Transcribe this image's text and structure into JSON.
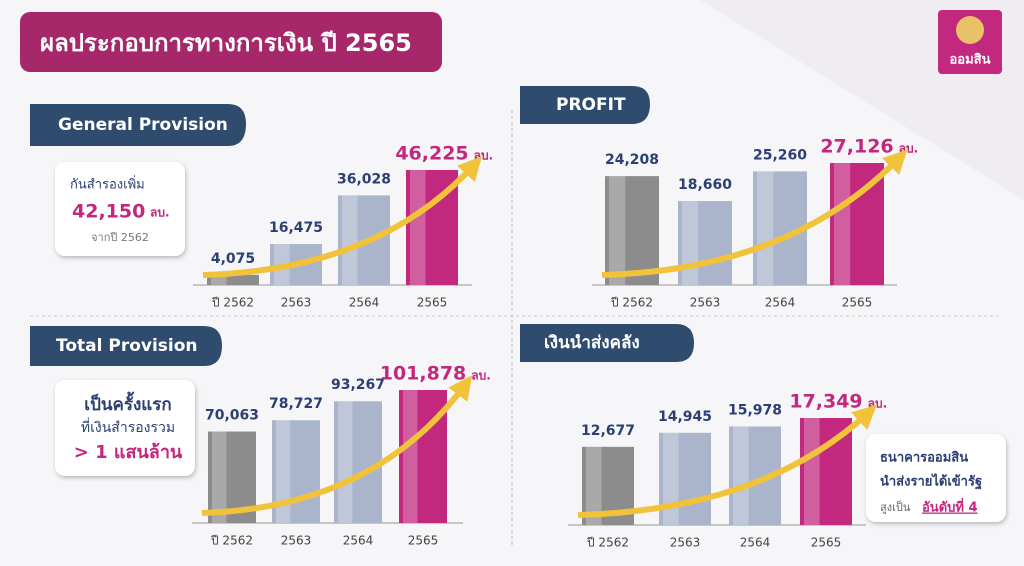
{
  "header": {
    "title": "ผลประกอบการทางการเงิน ปี 2565",
    "logo": "ออมสิน"
  },
  "chart_data": [
    {
      "type": "bar",
      "title": "General Provision",
      "categories": [
        "ปี 2562",
        "2563",
        "2564",
        "2565"
      ],
      "values": [
        4075,
        16475,
        36028,
        46225
      ],
      "value_labels": [
        "4,075",
        "16,475",
        "36,028",
        "46,225"
      ],
      "unit": "ลบ.",
      "colors": [
        "#8c8c8c",
        "#aab5cc",
        "#aab5cc",
        "#c2287e"
      ],
      "note": [
        "กันสำรองเพิ่ม",
        "42,150",
        "ลบ.",
        "จากปี 2562"
      ]
    },
    {
      "type": "bar",
      "title": "PROFIT",
      "categories": [
        "ปี 2562",
        "2563",
        "2564",
        "2565"
      ],
      "values": [
        24208,
        18660,
        25260,
        27126
      ],
      "value_labels": [
        "24,208",
        "18,660",
        "25,260",
        "27,126"
      ],
      "unit": "ลบ.",
      "colors": [
        "#8c8c8c",
        "#aab5cc",
        "#aab5cc",
        "#c2287e"
      ]
    },
    {
      "type": "bar",
      "title": "Total Provision",
      "categories": [
        "ปี 2562",
        "2563",
        "2564",
        "2565"
      ],
      "values": [
        70063,
        78727,
        93267,
        101878
      ],
      "value_labels": [
        "70,063",
        "78,727",
        "93,267",
        "101,878"
      ],
      "unit": "ลบ.",
      "colors": [
        "#8c8c8c",
        "#aab5cc",
        "#aab5cc",
        "#c2287e"
      ],
      "note": [
        "เป็นครั้งแรก",
        "ที่เงินสำรองรวม",
        "> 1 แสนล้าน"
      ]
    },
    {
      "type": "bar",
      "title": "เงินนำส่งคลัง",
      "categories": [
        "ปี 2562",
        "2563",
        "2564",
        "2565"
      ],
      "values": [
        12677,
        14945,
        15978,
        17349
      ],
      "value_labels": [
        "12,677",
        "14,945",
        "15,978",
        "17,349"
      ],
      "unit": "ลบ.",
      "colors": [
        "#8c8c8c",
        "#aab5cc",
        "#aab5cc",
        "#c2287e"
      ],
      "note": [
        "ธนาคารออมสิน",
        "นำส่งรายได้เข้ารัฐ",
        "สูงเป็น",
        "อันดับที่ 4"
      ]
    }
  ]
}
